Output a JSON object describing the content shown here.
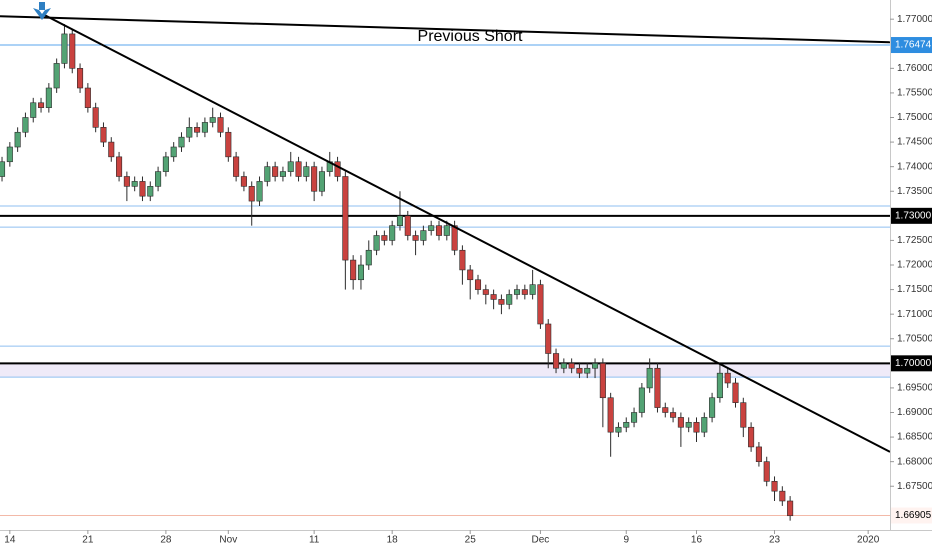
{
  "chart_data": {
    "type": "candlestick",
    "annotation": "Previous Short",
    "up_color": "#53a374",
    "down_color": "#c9423f",
    "wick_color": "#2b2b2b",
    "xlim": [
      -0.26,
      113.8
    ],
    "ylim": [
      1.6661,
      1.7739
    ],
    "xticks": [
      {
        "value": 1,
        "label": "14"
      },
      {
        "value": 11,
        "label": "21"
      },
      {
        "value": 21,
        "label": "28"
      },
      {
        "value": 29,
        "label": "Nov"
      },
      {
        "value": 40,
        "label": "11"
      },
      {
        "value": 50,
        "label": "18"
      },
      {
        "value": 60,
        "label": "25"
      },
      {
        "value": 69,
        "label": "Dec"
      },
      {
        "value": 80,
        "label": "9"
      },
      {
        "value": 89,
        "label": "16"
      },
      {
        "value": 99,
        "label": "23"
      },
      {
        "value": 111,
        "label": "2020"
      }
    ],
    "yticks": [
      {
        "value": 1.77,
        "label": "1.77000"
      },
      {
        "value": 1.76,
        "label": "1.76000"
      },
      {
        "value": 1.755,
        "label": "1.75500"
      },
      {
        "value": 1.75,
        "label": "1.75000"
      },
      {
        "value": 1.745,
        "label": "1.74500"
      },
      {
        "value": 1.74,
        "label": "1.74000"
      },
      {
        "value": 1.735,
        "label": "1.73500"
      },
      {
        "value": 1.725,
        "label": "1.72500"
      },
      {
        "value": 1.72,
        "label": "1.72000"
      },
      {
        "value": 1.715,
        "label": "1.71500"
      },
      {
        "value": 1.71,
        "label": "1.71000"
      },
      {
        "value": 1.705,
        "label": "1.70500"
      },
      {
        "value": 1.695,
        "label": "1.69500"
      },
      {
        "value": 1.69,
        "label": "1.69000"
      },
      {
        "value": 1.685,
        "label": "1.68500"
      },
      {
        "value": 1.68,
        "label": "1.68000"
      },
      {
        "value": 1.675,
        "label": "1.67500"
      }
    ],
    "grid": false,
    "zones": [
      {
        "from": 1.6972,
        "to": 1.7,
        "color": "#efeaf8"
      }
    ],
    "levels": [
      {
        "value": 1.76474,
        "label": "1.76474",
        "color": "#5aa6ec",
        "width": 1,
        "box_color": "#2e8de0",
        "text_color": "#ffffff"
      },
      {
        "value": 1.732,
        "color": "#8fbff0",
        "width": 1
      },
      {
        "value": 1.7277,
        "color": "#8fbff0",
        "width": 1
      },
      {
        "value": 1.73,
        "label": "1.73000",
        "color": "#000000",
        "width": 2,
        "box_color": "#000000",
        "text_color": "#ffffff"
      },
      {
        "value": 1.7035,
        "color": "#8fbff0",
        "width": 1
      },
      {
        "value": 1.6972,
        "color": "#8fbff0",
        "width": 1
      },
      {
        "value": 1.7,
        "label": "1.70000",
        "color": "#000000",
        "width": 2,
        "box_color": "#000000",
        "text_color": "#ffffff"
      },
      {
        "value": 1.66905,
        "label": "1.66905",
        "color": "#f3b9a8",
        "width": 1,
        "box_color": "#fff3f0",
        "text_color": "#000000"
      }
    ],
    "trendlines": [
      {
        "x": [
          -0.26,
          113.8
        ],
        "y": [
          1.7706,
          1.7653
        ],
        "color": "#000000"
      },
      {
        "x": [
          5.5,
          113.8
        ],
        "y": [
          1.7708,
          1.682
        ],
        "color": "#000000"
      }
    ],
    "open": [
      1.738,
      1.741,
      1.744,
      1.747,
      1.75,
      1.753,
      1.752,
      1.756,
      1.761,
      1.767,
      1.76,
      1.756,
      1.752,
      1.748,
      1.745,
      1.742,
      1.738,
      1.736,
      1.737,
      1.734,
      1.736,
      1.739,
      1.742,
      1.744,
      1.746,
      1.748,
      1.747,
      1.749,
      1.75,
      1.747,
      1.742,
      1.738,
      1.736,
      1.733,
      1.737,
      1.74,
      1.738,
      1.739,
      1.741,
      1.738,
      1.74,
      1.735,
      1.739,
      1.741,
      1.738,
      1.721,
      1.717,
      1.72,
      1.723,
      1.726,
      1.725,
      1.728,
      1.73,
      1.726,
      1.725,
      1.727,
      1.728,
      1.726,
      1.728,
      1.723,
      1.719,
      1.717,
      1.715,
      1.714,
      1.713,
      1.712,
      1.714,
      1.715,
      1.714,
      1.716,
      1.708,
      1.702,
      1.699,
      1.7,
      1.699,
      1.698,
      1.699,
      1.7,
      1.693,
      1.686,
      1.687,
      1.688,
      1.69,
      1.695,
      1.699,
      1.691,
      1.69,
      1.689,
      1.687,
      1.688,
      1.686,
      1.689,
      1.693,
      1.698,
      1.696,
      1.692,
      1.687,
      1.683,
      1.68,
      1.676,
      1.674,
      1.672
    ],
    "high": [
      1.742,
      1.745,
      1.748,
      1.751,
      1.754,
      1.754,
      1.757,
      1.762,
      1.769,
      1.768,
      1.761,
      1.757,
      1.753,
      1.749,
      1.746,
      1.743,
      1.739,
      1.738,
      1.738,
      1.737,
      1.74,
      1.743,
      1.745,
      1.747,
      1.75,
      1.749,
      1.75,
      1.752,
      1.751,
      1.748,
      1.743,
      1.739,
      1.737,
      1.738,
      1.741,
      1.741,
      1.74,
      1.743,
      1.742,
      1.741,
      1.741,
      1.74,
      1.743,
      1.742,
      1.739,
      1.722,
      1.722,
      1.725,
      1.727,
      1.727,
      1.729,
      1.735,
      1.731,
      1.727,
      1.728,
      1.729,
      1.729,
      1.729,
      1.729,
      1.724,
      1.72,
      1.718,
      1.716,
      1.715,
      1.714,
      1.715,
      1.716,
      1.716,
      1.719,
      1.717,
      1.709,
      1.703,
      1.701,
      1.701,
      1.7,
      1.7,
      1.701,
      1.701,
      1.694,
      1.688,
      1.689,
      1.691,
      1.696,
      1.701,
      1.7,
      1.692,
      1.691,
      1.69,
      1.689,
      1.689,
      1.69,
      1.694,
      1.7,
      1.699,
      1.697,
      1.693,
      1.688,
      1.684,
      1.681,
      1.677,
      1.675,
      1.673
    ],
    "low": [
      1.737,
      1.74,
      1.743,
      1.746,
      1.749,
      1.751,
      1.751,
      1.755,
      1.76,
      1.759,
      1.755,
      1.751,
      1.747,
      1.744,
      1.741,
      1.737,
      1.733,
      1.735,
      1.733,
      1.733,
      1.735,
      1.738,
      1.741,
      1.743,
      1.745,
      1.746,
      1.746,
      1.748,
      1.746,
      1.741,
      1.737,
      1.735,
      1.728,
      1.732,
      1.736,
      1.737,
      1.737,
      1.738,
      1.737,
      1.737,
      1.733,
      1.734,
      1.738,
      1.737,
      1.715,
      1.715,
      1.715,
      1.719,
      1.722,
      1.724,
      1.724,
      1.727,
      1.725,
      1.722,
      1.724,
      1.726,
      1.725,
      1.725,
      1.722,
      1.716,
      1.713,
      1.714,
      1.712,
      1.711,
      1.71,
      1.711,
      1.713,
      1.713,
      1.713,
      1.707,
      1.699,
      1.698,
      1.698,
      1.698,
      1.697,
      1.697,
      1.697,
      1.687,
      1.681,
      1.685,
      1.686,
      1.687,
      1.689,
      1.694,
      1.69,
      1.689,
      1.688,
      1.683,
      1.686,
      1.684,
      1.685,
      1.688,
      1.692,
      1.695,
      1.691,
      1.685,
      1.682,
      1.679,
      1.675,
      1.672,
      1.671,
      1.668
    ],
    "close": [
      1.741,
      1.744,
      1.747,
      1.75,
      1.753,
      1.752,
      1.756,
      1.761,
      1.767,
      1.76,
      1.756,
      1.752,
      1.748,
      1.745,
      1.742,
      1.738,
      1.736,
      1.737,
      1.734,
      1.736,
      1.739,
      1.742,
      1.744,
      1.746,
      1.748,
      1.747,
      1.749,
      1.75,
      1.747,
      1.742,
      1.738,
      1.736,
      1.733,
      1.737,
      1.74,
      1.738,
      1.739,
      1.741,
      1.738,
      1.74,
      1.735,
      1.739,
      1.741,
      1.738,
      1.721,
      1.717,
      1.72,
      1.723,
      1.726,
      1.725,
      1.728,
      1.73,
      1.726,
      1.725,
      1.727,
      1.728,
      1.726,
      1.728,
      1.723,
      1.719,
      1.717,
      1.715,
      1.714,
      1.713,
      1.712,
      1.714,
      1.715,
      1.714,
      1.716,
      1.708,
      1.702,
      1.699,
      1.7,
      1.699,
      1.698,
      1.699,
      1.7,
      1.693,
      1.686,
      1.687,
      1.688,
      1.69,
      1.695,
      1.699,
      1.691,
      1.69,
      1.689,
      1.687,
      1.688,
      1.686,
      1.689,
      1.693,
      1.698,
      1.696,
      1.692,
      1.687,
      1.683,
      1.68,
      1.676,
      1.674,
      1.672,
      1.669
    ]
  }
}
